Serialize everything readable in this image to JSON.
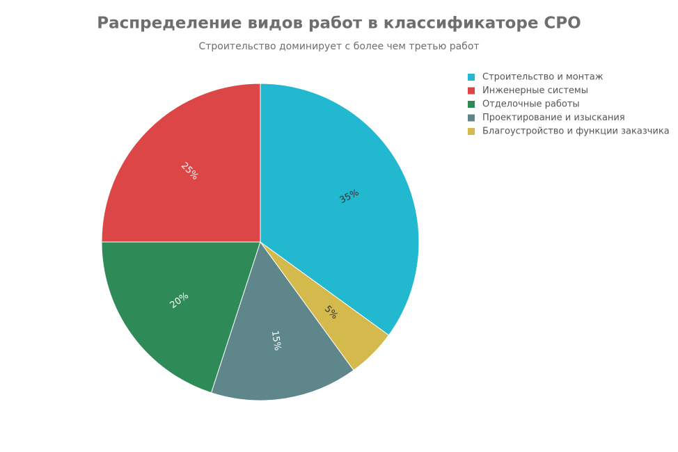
{
  "chart_data": {
    "type": "pie",
    "title": "Распределение видов работ в классификаторе СРО",
    "subtitle": "Строительство доминирует с более чем третью работ",
    "categories": [
      "Строительство и монтаж",
      "Инженерные системы",
      "Отделочные работы",
      "Проектирование и изыскания",
      "Благоустройство и функции заказчика"
    ],
    "values": [
      35,
      25,
      20,
      15,
      5
    ],
    "value_labels": [
      "35%",
      "25%",
      "20%",
      "15%",
      "5%"
    ],
    "colors": [
      "#22b8cf",
      "#dc4646",
      "#2e8b57",
      "#5f868a",
      "#d4b94c"
    ],
    "legend": "top-right"
  }
}
